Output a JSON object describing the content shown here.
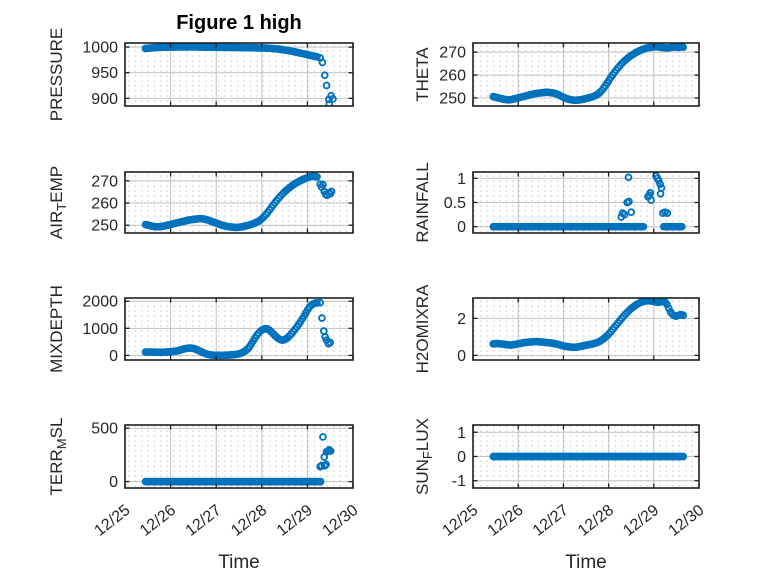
{
  "figure": {
    "title": "Figure 1 high",
    "xlabel": "Time",
    "background": "#ffffff",
    "marker_color": "#0072BD",
    "axis_color": "#1f1f1f",
    "grid_color": "#c2c2c2",
    "minor_dot_color": "#c9c9c9",
    "text_color": "#262626",
    "x_tick_labels": [
      "12/25",
      "12/26",
      "12/27",
      "12/28",
      "12/29",
      "12/30"
    ],
    "xlim": [
      0,
      5
    ],
    "x_unit": "days"
  },
  "chart_data": [
    {
      "type": "scatter",
      "name": "PRESSURE",
      "row": 0,
      "col": 0,
      "ylabel": [
        {
          "t": "PRESSURE",
          "sub": false
        }
      ],
      "yticks": [
        900,
        950,
        1000
      ],
      "ylim": [
        885,
        1008
      ],
      "x_start": 0.45,
      "x_step": 0.04,
      "ys": [
        997.2,
        997.6,
        998.0,
        998.3,
        998.6,
        998.9,
        999.1,
        999.3,
        999.5,
        999.6,
        999.7,
        999.8,
        999.9,
        1000.0,
        1000.1,
        1000.1,
        1000.2,
        1000.2,
        1000.3,
        1000.3,
        1000.4,
        1000.4,
        1000.5,
        1000.5,
        1000.4,
        1000.4,
        1000.3,
        1000.3,
        1000.2,
        1000.2,
        1000.1,
        1000.1,
        1000.0,
        1000.0,
        999.9,
        999.9,
        999.8,
        999.8,
        999.7,
        999.7,
        999.6,
        999.6,
        999.5,
        999.5,
        999.4,
        999.4,
        999.3,
        999.3,
        999.2,
        999.2,
        999.1,
        999.1,
        999.0,
        999.0,
        998.9,
        998.9,
        998.8,
        998.8,
        998.7,
        998.7,
        998.6,
        998.5,
        998.4,
        998.3,
        998.2,
        998.1,
        998.0,
        997.8,
        997.6,
        997.4,
        997.1,
        996.8,
        996.4,
        996.0,
        995.5,
        995.0,
        994.5,
        993.9,
        993.3,
        992.7,
        992.0,
        991.3,
        990.6,
        989.8,
        989.0,
        988.2,
        987.4,
        986.6,
        985.8,
        985.0,
        984.2,
        983.4,
        982.6,
        981.8,
        981.0
      ],
      "extra_points": [
        [
          4.28,
          979
        ],
        [
          4.33,
          970
        ],
        [
          4.38,
          945
        ],
        [
          4.42,
          925
        ],
        [
          4.47,
          898
        ],
        [
          4.48,
          889
        ],
        [
          4.52,
          905
        ],
        [
          4.56,
          899
        ]
      ]
    },
    {
      "type": "scatter",
      "name": "THETA",
      "row": 0,
      "col": 1,
      "ylabel": [
        {
          "t": "THETA",
          "sub": false
        }
      ],
      "yticks": [
        250,
        260,
        270
      ],
      "ylim": [
        246.5,
        274
      ],
      "x_start": 0.45,
      "x_step": 0.04,
      "ys": [
        250.6,
        250.4,
        250.2,
        250.0,
        249.8,
        249.6,
        249.4,
        249.3,
        249.2,
        249.2,
        249.3,
        249.5,
        249.7,
        249.9,
        250.1,
        250.3,
        250.5,
        250.7,
        250.9,
        251.1,
        251.3,
        251.5,
        251.7,
        251.9,
        252.0,
        252.1,
        252.2,
        252.3,
        252.4,
        252.5,
        252.5,
        252.4,
        252.3,
        252.2,
        252.0,
        251.8,
        251.4,
        251.0,
        250.6,
        250.2,
        249.9,
        249.6,
        249.4,
        249.2,
        249.1,
        249.0,
        249.0,
        249.1,
        249.2,
        249.3,
        249.5,
        249.7,
        249.9,
        250.1,
        250.3,
        250.6,
        250.9,
        251.3,
        251.8,
        252.5,
        253.3,
        254.3,
        255.4,
        256.6,
        257.8,
        259.0,
        260.1,
        261.2,
        262.2,
        263.2,
        264.1,
        265.0,
        265.8,
        266.5,
        267.2,
        267.8,
        268.4,
        268.9,
        269.4,
        269.9,
        270.3,
        270.7,
        271.0,
        271.3,
        271.6,
        271.8,
        272.0,
        272.1,
        272.2,
        272.3,
        272.4,
        272.3,
        272.2,
        272.1,
        272.0,
        271.9,
        271.8,
        271.9,
        272.0,
        272.2,
        272.3,
        272.2,
        272.1,
        272.2,
        272.3,
        272.2
      ],
      "extra_points": []
    },
    {
      "type": "scatter",
      "name": "AIR_TEMP",
      "row": 1,
      "col": 0,
      "ylabel": [
        {
          "t": "AIR",
          "sub": false
        },
        {
          "t": "T",
          "sub": true
        },
        {
          "t": "EMP",
          "sub": false
        }
      ],
      "yticks": [
        250,
        260,
        270
      ],
      "ylim": [
        246.5,
        274
      ],
      "x_start": 0.45,
      "x_step": 0.04,
      "ys": [
        250.3,
        250.1,
        249.9,
        249.7,
        249.5,
        249.4,
        249.3,
        249.3,
        249.4,
        249.5,
        249.6,
        249.8,
        250.0,
        250.2,
        250.4,
        250.6,
        250.8,
        251.0,
        251.2,
        251.4,
        251.6,
        251.8,
        252.0,
        252.2,
        252.4,
        252.5,
        252.6,
        252.7,
        252.8,
        252.9,
        253.0,
        252.9,
        252.8,
        252.6,
        252.4,
        252.1,
        251.8,
        251.5,
        251.2,
        250.9,
        250.6,
        250.3,
        250.0,
        249.8,
        249.6,
        249.4,
        249.3,
        249.2,
        249.1,
        249.0,
        249.0,
        249.1,
        249.2,
        249.3,
        249.5,
        249.7,
        249.9,
        250.1,
        250.4,
        250.7,
        251.0,
        251.4,
        251.8,
        252.4,
        253.1,
        253.9,
        254.8,
        255.8,
        256.9,
        258.0,
        259.1,
        260.2,
        261.2,
        262.2,
        263.1,
        264.0,
        264.8,
        265.6,
        266.3,
        267.0,
        267.6,
        268.2,
        268.7,
        269.2,
        269.7,
        270.1,
        270.5,
        270.9,
        271.2,
        271.5,
        271.8,
        272.0,
        272.1,
        272.0,
        271.8
      ],
      "extra_points": [
        [
          4.28,
          268.5
        ],
        [
          4.31,
          267.2
        ],
        [
          4.34,
          268.3
        ],
        [
          4.37,
          265.2
        ],
        [
          4.4,
          264.0
        ],
        [
          4.43,
          263.5
        ],
        [
          4.47,
          264.6
        ],
        [
          4.5,
          264.2
        ],
        [
          4.53,
          265.2
        ]
      ]
    },
    {
      "type": "scatter",
      "name": "RAINFALL",
      "row": 1,
      "col": 1,
      "ylabel": [
        {
          "t": "RAINFALL",
          "sub": false
        }
      ],
      "yticks": [
        0,
        0.5,
        1
      ],
      "ylim": [
        -0.13,
        1.13
      ],
      "x_start": 0.45,
      "x_step": 0.04,
      "ys": [
        0,
        0,
        0,
        0,
        0,
        0,
        0,
        0,
        0,
        0,
        0,
        0,
        0,
        0,
        0,
        0,
        0,
        0,
        0,
        0,
        0,
        0,
        0,
        0,
        0,
        0,
        0,
        0,
        0,
        0,
        0,
        0,
        0,
        0,
        0,
        0,
        0,
        0,
        0,
        0,
        0,
        0,
        0,
        0,
        0,
        0,
        0,
        0,
        0,
        0,
        0,
        0,
        0,
        0,
        0,
        0,
        0,
        0,
        0,
        0,
        0,
        0,
        0,
        0,
        0,
        0,
        0,
        0,
        0,
        0,
        0,
        0,
        0,
        0,
        0,
        0,
        0
      ],
      "extra_points": [
        [
          3.28,
          0.2
        ],
        [
          3.31,
          0.28
        ],
        [
          3.35,
          0.25
        ],
        [
          3.41,
          0.5
        ],
        [
          3.45,
          0.52
        ],
        [
          3.44,
          1.02
        ],
        [
          3.5,
          0.3
        ],
        [
          3.53,
          0
        ],
        [
          3.57,
          0
        ],
        [
          3.61,
          0
        ],
        [
          3.65,
          0
        ],
        [
          3.69,
          0
        ],
        [
          3.73,
          0
        ],
        [
          3.77,
          0
        ],
        [
          3.87,
          0.62
        ],
        [
          3.9,
          0.65
        ],
        [
          3.92,
          0.7
        ],
        [
          3.94,
          0.55
        ],
        [
          4.05,
          1.05
        ],
        [
          4.08,
          1.0
        ],
        [
          4.11,
          0.95
        ],
        [
          4.14,
          0.88
        ],
        [
          4.17,
          0.8
        ],
        [
          4.15,
          0.68
        ],
        [
          4.2,
          0.28
        ],
        [
          4.25,
          0.3
        ],
        [
          4.3,
          0.28
        ],
        [
          4.22,
          0
        ],
        [
          4.26,
          0
        ],
        [
          4.3,
          0
        ],
        [
          4.34,
          0
        ],
        [
          4.38,
          0
        ],
        [
          4.42,
          0
        ],
        [
          4.46,
          0
        ],
        [
          4.5,
          0
        ],
        [
          4.54,
          0
        ],
        [
          4.58,
          0
        ],
        [
          4.62,
          0
        ]
      ]
    },
    {
      "type": "scatter",
      "name": "MIXDEPTH",
      "row": 2,
      "col": 0,
      "ylabel": [
        {
          "t": "MIXDEPTH",
          "sub": false
        }
      ],
      "yticks": [
        0,
        1000,
        2000
      ],
      "ylim": [
        -170,
        2120
      ],
      "x_start": 0.45,
      "x_step": 0.04,
      "ys": [
        120,
        124,
        128,
        126,
        123,
        120,
        118,
        116,
        115,
        116,
        118,
        121,
        125,
        130,
        136,
        143,
        152,
        163,
        177,
        195,
        215,
        235,
        252,
        264,
        270,
        268,
        258,
        240,
        215,
        185,
        152,
        120,
        90,
        64,
        42,
        26,
        15,
        8,
        4,
        2,
        1,
        1,
        2,
        4,
        7,
        10,
        14,
        18,
        23,
        30,
        40,
        55,
        75,
        100,
        135,
        180,
        240,
        320,
        420,
        530,
        640,
        740,
        825,
        895,
        945,
        975,
        985,
        970,
        930,
        870,
        800,
        730,
        665,
        615,
        580,
        565,
        575,
        610,
        660,
        725,
        800,
        880,
        965,
        1055,
        1150,
        1250,
        1355,
        1465,
        1580,
        1695,
        1790,
        1860,
        1905,
        1930,
        1940
      ],
      "extra_points": [
        [
          4.28,
          1950
        ],
        [
          4.32,
          1380
        ],
        [
          4.36,
          900
        ],
        [
          4.39,
          680
        ],
        [
          4.42,
          560
        ],
        [
          4.46,
          430
        ],
        [
          4.5,
          475
        ]
      ]
    },
    {
      "type": "scatter",
      "name": "H2OMIXRA",
      "row": 2,
      "col": 1,
      "ylabel": [
        {
          "t": "H2OMIXRA",
          "sub": false
        }
      ],
      "yticks": [
        0,
        2
      ],
      "ylim": [
        -0.25,
        3.1
      ],
      "x_start": 0.45,
      "x_step": 0.04,
      "ys": [
        0.62,
        0.63,
        0.64,
        0.63,
        0.62,
        0.61,
        0.6,
        0.58,
        0.57,
        0.56,
        0.56,
        0.57,
        0.59,
        0.61,
        0.63,
        0.65,
        0.67,
        0.69,
        0.7,
        0.71,
        0.72,
        0.73,
        0.74,
        0.74,
        0.75,
        0.74,
        0.73,
        0.72,
        0.71,
        0.7,
        0.69,
        0.68,
        0.67,
        0.65,
        0.63,
        0.61,
        0.59,
        0.56,
        0.53,
        0.51,
        0.49,
        0.47,
        0.46,
        0.45,
        0.44,
        0.44,
        0.45,
        0.46,
        0.48,
        0.5,
        0.52,
        0.54,
        0.56,
        0.58,
        0.6,
        0.62,
        0.65,
        0.68,
        0.72,
        0.77,
        0.83,
        0.9,
        0.98,
        1.07,
        1.17,
        1.28,
        1.4,
        1.52,
        1.64,
        1.76,
        1.88,
        2.0,
        2.11,
        2.22,
        2.32,
        2.42,
        2.51,
        2.59,
        2.66,
        2.73,
        2.79,
        2.84,
        2.88,
        2.91,
        2.93,
        2.95,
        2.95,
        2.94,
        2.92,
        2.9,
        2.88,
        2.87,
        2.88,
        2.9,
        2.92,
        2.88,
        2.75,
        2.55,
        2.35,
        2.22,
        2.15,
        2.12,
        2.15,
        2.18,
        2.2,
        2.16
      ],
      "extra_points": [
        [
          3.95,
          3.05
        ]
      ]
    },
    {
      "type": "scatter",
      "name": "TERR_MSL",
      "row": 3,
      "col": 0,
      "ylabel": [
        {
          "t": "TERR",
          "sub": false
        },
        {
          "t": "M",
          "sub": true
        },
        {
          "t": "SL",
          "sub": false
        }
      ],
      "yticks": [
        0,
        500
      ],
      "ylim": [
        -60,
        530
      ],
      "x_start": 0.45,
      "x_step": 0.04,
      "ys": [
        0,
        0,
        0,
        0,
        0,
        0,
        0,
        0,
        0,
        0,
        0,
        0,
        0,
        0,
        0,
        0,
        0,
        0,
        0,
        0,
        0,
        0,
        0,
        0,
        0,
        0,
        0,
        0,
        0,
        0,
        0,
        0,
        0,
        0,
        0,
        0,
        0,
        0,
        0,
        0,
        0,
        0,
        0,
        0,
        0,
        0,
        0,
        0,
        0,
        0,
        0,
        0,
        0,
        0,
        0,
        0,
        0,
        0,
        0,
        0,
        0,
        0,
        0,
        0,
        0,
        0,
        0,
        0,
        0,
        0,
        0,
        0,
        0,
        0,
        0,
        0,
        0,
        0,
        0,
        0,
        0,
        0,
        0,
        0,
        0,
        0,
        0,
        0,
        0,
        0,
        0,
        0,
        0,
        0,
        0,
        0,
        0
      ],
      "extra_points": [
        [
          4.28,
          140
        ],
        [
          4.31,
          150
        ],
        [
          4.34,
          418
        ],
        [
          4.37,
          230
        ],
        [
          4.38,
          148
        ],
        [
          4.41,
          160
        ],
        [
          4.42,
          278
        ],
        [
          4.45,
          287
        ],
        [
          4.48,
          297
        ],
        [
          4.51,
          286
        ]
      ]
    },
    {
      "type": "scatter",
      "name": "SUN_FLUX",
      "row": 3,
      "col": 1,
      "ylabel": [
        {
          "t": "SUN",
          "sub": false
        },
        {
          "t": "F",
          "sub": true
        },
        {
          "t": "LUX",
          "sub": false
        }
      ],
      "yticks": [
        -1,
        0,
        1
      ],
      "ylim": [
        -1.3,
        1.3
      ],
      "x_start": 0.45,
      "x_step": 0.04,
      "ys": [
        0,
        0,
        0,
        0,
        0,
        0,
        0,
        0,
        0,
        0,
        0,
        0,
        0,
        0,
        0,
        0,
        0,
        0,
        0,
        0,
        0,
        0,
        0,
        0,
        0,
        0,
        0,
        0,
        0,
        0,
        0,
        0,
        0,
        0,
        0,
        0,
        0,
        0,
        0,
        0,
        0,
        0,
        0,
        0,
        0,
        0,
        0,
        0,
        0,
        0,
        0,
        0,
        0,
        0,
        0,
        0,
        0,
        0,
        0,
        0,
        0,
        0,
        0,
        0,
        0,
        0,
        0,
        0,
        0,
        0,
        0,
        0,
        0,
        0,
        0,
        0,
        0,
        0,
        0,
        0,
        0,
        0,
        0,
        0,
        0,
        0,
        0,
        0,
        0,
        0,
        0,
        0,
        0,
        0,
        0,
        0,
        0,
        0,
        0,
        0,
        0,
        0,
        0,
        0,
        0,
        0
      ],
      "extra_points": []
    }
  ]
}
